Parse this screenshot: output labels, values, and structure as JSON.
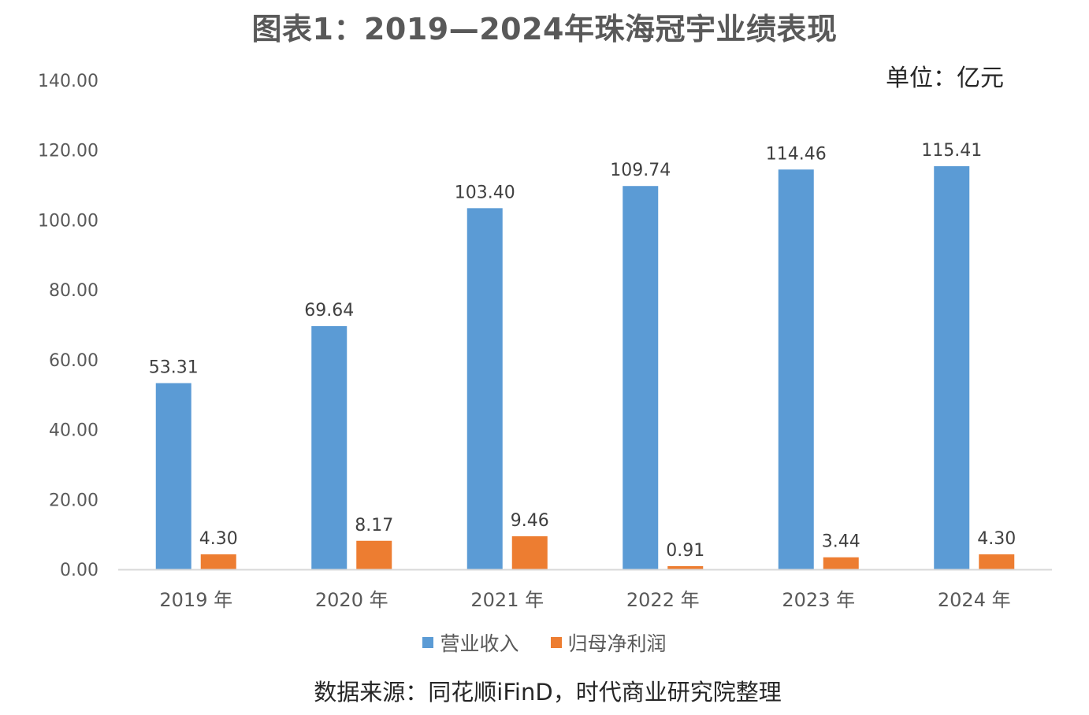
{
  "title": "图表1：2019—2024年珠海冠宇业绩表现",
  "unit": "单位：亿元",
  "source": "数据来源：同花顺iFinD，时代商业研究院整理",
  "colors": {
    "revenue": "#5B9BD5",
    "net_profit": "#ED7D31",
    "axis": "#D9D9D9"
  },
  "chart_data": {
    "type": "bar",
    "categories": [
      "2019 年",
      "2020 年",
      "2021 年",
      "2022 年",
      "2023 年",
      "2024 年"
    ],
    "series": [
      {
        "name": "营业收入",
        "values": [
          53.31,
          69.64,
          103.4,
          109.74,
          114.46,
          115.41
        ]
      },
      {
        "name": "归母净利润",
        "values": [
          4.3,
          8.17,
          9.46,
          0.91,
          3.44,
          4.3
        ]
      }
    ],
    "y_ticks": [
      "0.00",
      "20.00",
      "40.00",
      "60.00",
      "80.00",
      "100.00",
      "120.00",
      "140.00"
    ],
    "ylim": [
      0,
      140
    ],
    "grid": false,
    "legend_position": "bottom"
  }
}
